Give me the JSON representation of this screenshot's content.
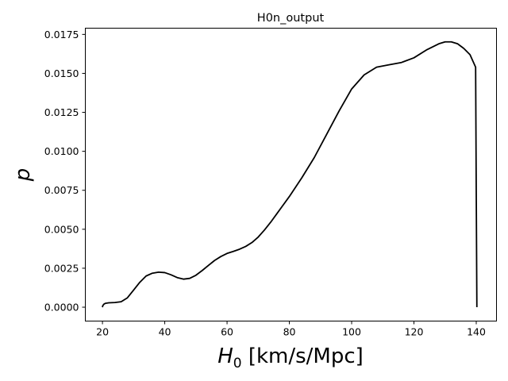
{
  "chart_data": {
    "type": "line",
    "title": "H0n_output",
    "xlabel_main": "H",
    "xlabel_sub": "0",
    "xlabel_rest": " [km/s/Mpc]",
    "ylabel": "p",
    "xlim": [
      14.5,
      146.5
    ],
    "ylim": [
      -0.00089,
      0.0179
    ],
    "x_ticks": [
      20,
      40,
      60,
      80,
      100,
      120,
      140
    ],
    "x_tick_labels": [
      "20",
      "40",
      "60",
      "80",
      "100",
      "120",
      "140"
    ],
    "y_ticks": [
      0,
      0.0025,
      0.005,
      0.0075,
      0.01,
      0.0125,
      0.015,
      0.0175
    ],
    "y_tick_labels": [
      "0.0000",
      "0.0025",
      "0.0050",
      "0.0075",
      "0.0100",
      "0.0125",
      "0.0150",
      "0.0175"
    ],
    "grid": false,
    "series": [
      {
        "color": "#000000",
        "x": [
          20,
          20.1,
          20.5,
          21,
          22,
          24,
          26,
          28,
          30,
          32,
          34,
          36,
          38,
          40,
          42,
          44,
          46,
          48,
          50,
          52,
          54,
          56,
          58,
          60,
          62,
          64,
          66,
          68,
          70,
          72,
          74,
          76,
          78,
          80,
          84,
          88,
          92,
          96,
          100,
          104,
          108,
          112,
          116,
          120,
          124,
          128,
          130,
          132,
          134,
          136,
          138,
          139.8,
          140,
          140.2
        ],
        "y": [
          0.0,
          0.0001,
          0.0002,
          0.00025,
          0.00028,
          0.0003,
          0.00035,
          0.0006,
          0.0011,
          0.0016,
          0.002,
          0.00218,
          0.00225,
          0.00222,
          0.00208,
          0.0019,
          0.0018,
          0.00185,
          0.00205,
          0.00235,
          0.00268,
          0.003,
          0.00325,
          0.00345,
          0.00358,
          0.00372,
          0.0039,
          0.00415,
          0.0045,
          0.00495,
          0.00545,
          0.006,
          0.00655,
          0.0071,
          0.0083,
          0.0096,
          0.0111,
          0.0126,
          0.014,
          0.0149,
          0.0154,
          0.01555,
          0.0157,
          0.016,
          0.0165,
          0.0169,
          0.01702,
          0.01702,
          0.0169,
          0.0166,
          0.0162,
          0.0154,
          0.0075,
          0.0
        ]
      }
    ]
  }
}
